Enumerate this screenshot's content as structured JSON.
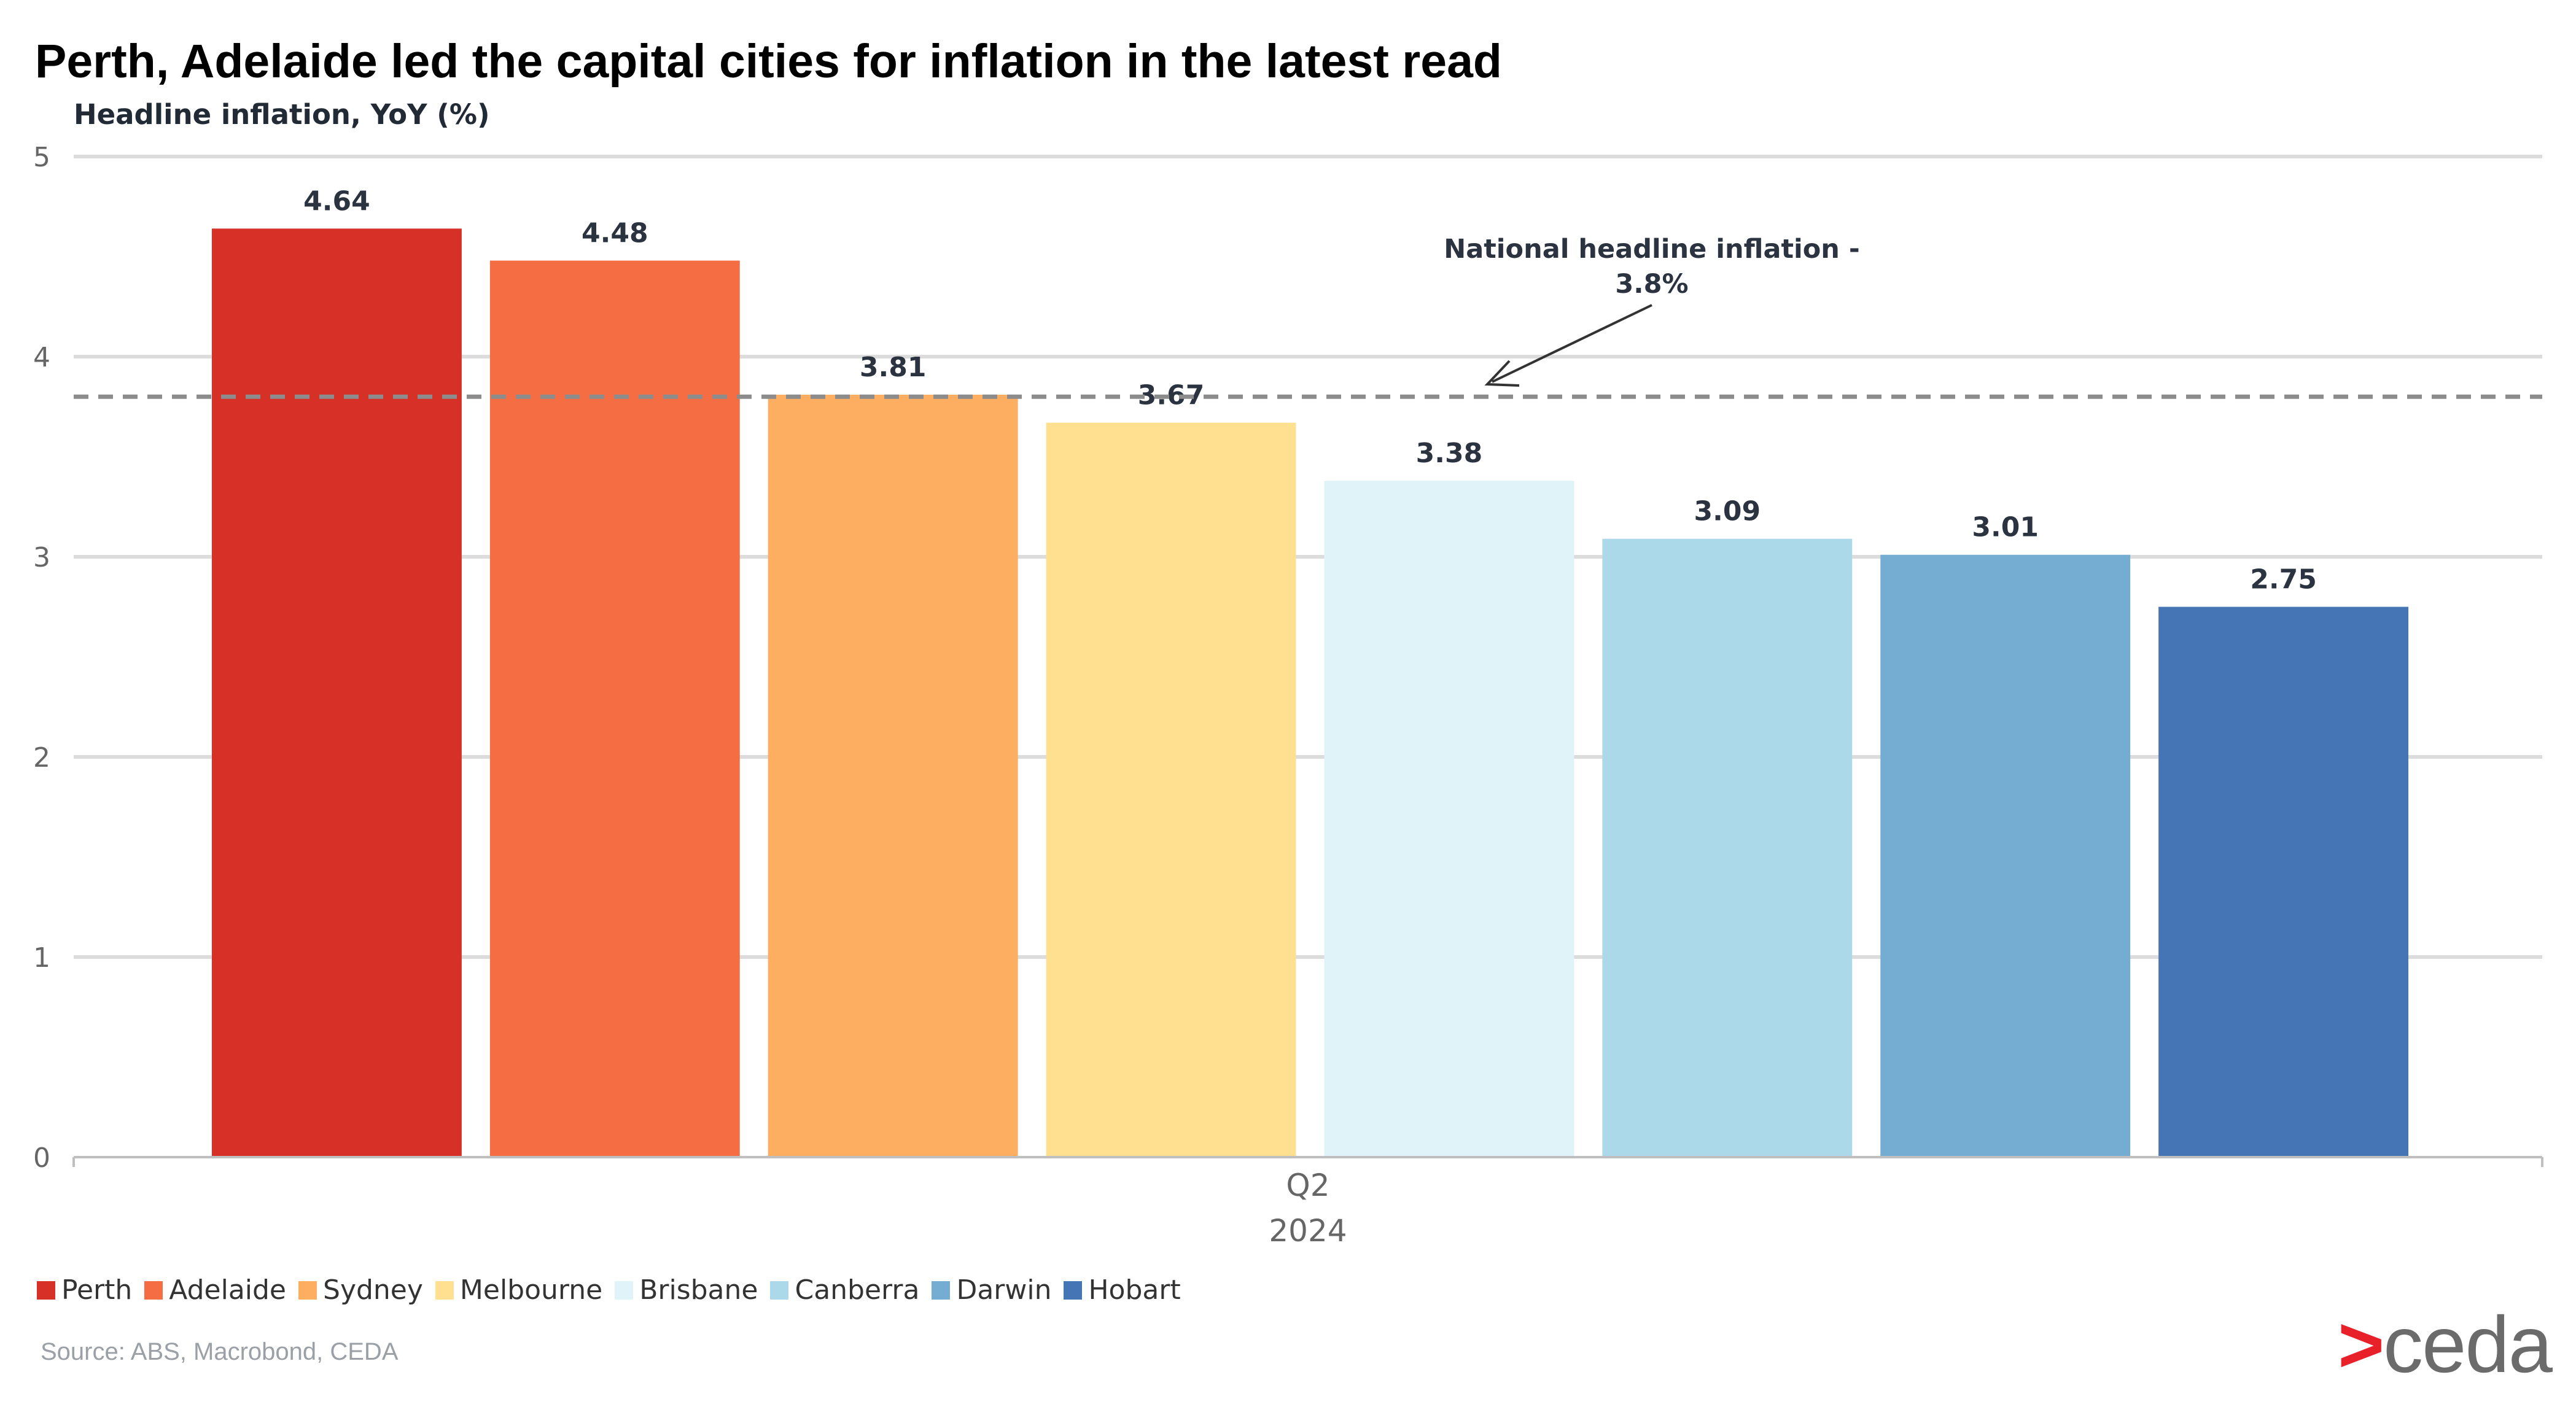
{
  "header": {
    "title": "Perth, Adelaide led the capital cities for inflation in the latest read",
    "ylabel": "Headline inflation, YoY (%)"
  },
  "chart_data": {
    "type": "bar",
    "title": "Perth, Adelaide led the capital cities for inflation in the latest read",
    "ylabel": "Headline inflation, YoY (%)",
    "xlabel": "",
    "categories": [
      "Q2\n2024"
    ],
    "x_tick_label": {
      "line1": "Q2",
      "line2": "2024"
    },
    "ylim": [
      0,
      5
    ],
    "yticks": [
      0,
      1,
      2,
      3,
      4,
      5
    ],
    "grid": true,
    "legend_position": "bottom-left",
    "series": [
      {
        "name": "Perth",
        "value": 4.64,
        "label": "4.64",
        "color": "#d73027"
      },
      {
        "name": "Adelaide",
        "value": 4.48,
        "label": "4.48",
        "color": "#f46d43"
      },
      {
        "name": "Sydney",
        "value": 3.81,
        "label": "3.81",
        "color": "#fdae61"
      },
      {
        "name": "Melbourne",
        "value": 3.67,
        "label": "3.67",
        "color": "#fee090"
      },
      {
        "name": "Brisbane",
        "value": 3.38,
        "label": "3.38",
        "color": "#e0f3f8"
      },
      {
        "name": "Canberra",
        "value": 3.09,
        "label": "3.09",
        "color": "#abd9e9"
      },
      {
        "name": "Darwin",
        "value": 3.01,
        "label": "3.01",
        "color": "#74add1"
      },
      {
        "name": "Hobart",
        "value": 2.75,
        "label": "2.75",
        "color": "#4575b4"
      }
    ],
    "reference_line": {
      "value": 3.8,
      "style": "dashed",
      "color": "#8c8c8c",
      "annotation_line1": "National headline inflation -",
      "annotation_line2": "3.8%"
    }
  },
  "footer": {
    "source": "Source: ABS, Macrobond, CEDA",
    "logo_mark": ">",
    "logo_text": "ceda"
  }
}
